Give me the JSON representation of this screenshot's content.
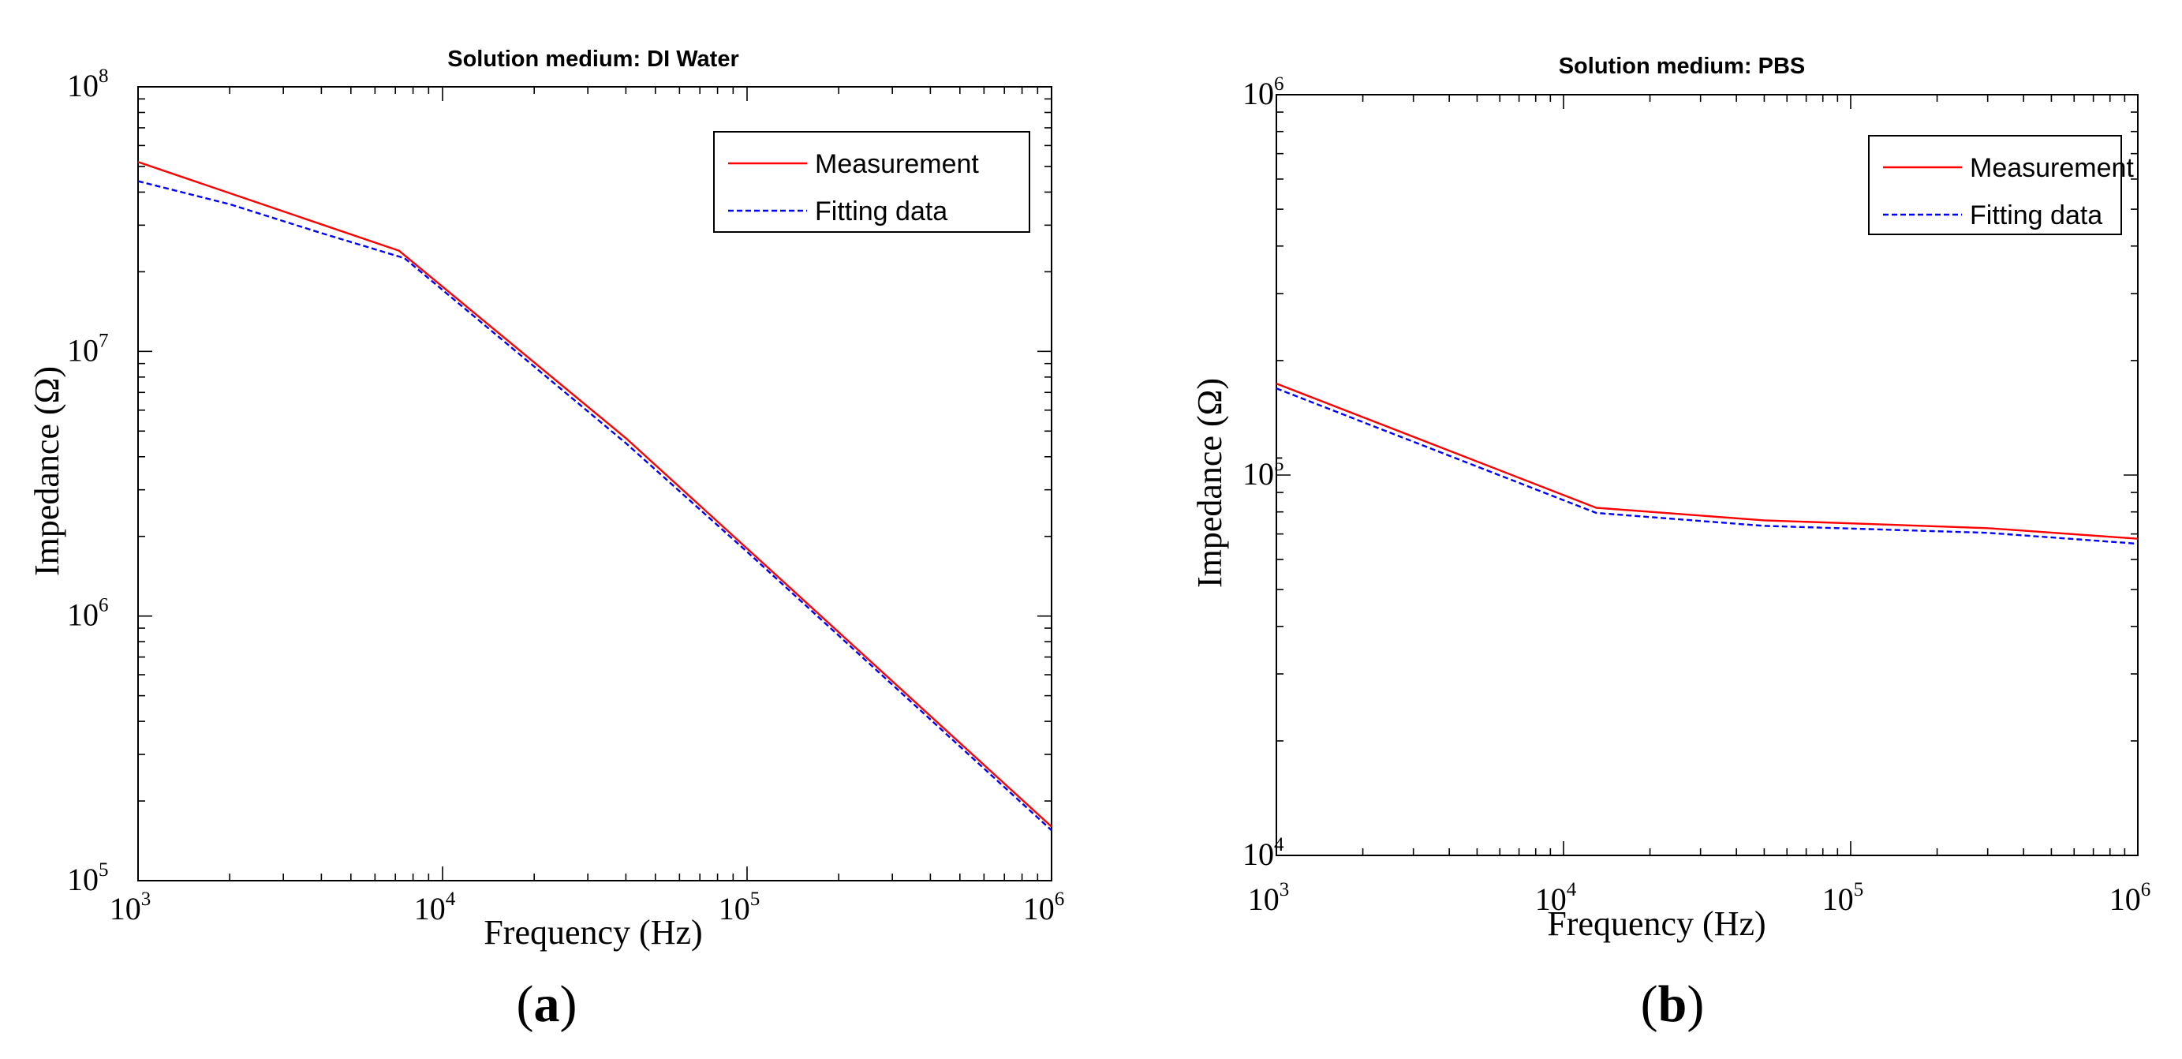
{
  "figure": {
    "panels": [
      {
        "caption_open": "(",
        "caption_letter": "a",
        "caption_close": ")"
      },
      {
        "caption_open": "(",
        "caption_letter": "b",
        "caption_close": ")"
      }
    ]
  },
  "chart_data": [
    {
      "type": "line",
      "title": "Solution medium: DI Water",
      "xlabel": "Frequency (Hz)",
      "ylabel": "Impedance (Ω)",
      "xscale": "log",
      "yscale": "log",
      "xlim": [
        1000,
        1000000
      ],
      "ylim": [
        100000,
        100000000
      ],
      "x_ticks": [
        {
          "value": 1000,
          "base": "10",
          "exp": "3"
        },
        {
          "value": 10000,
          "base": "10",
          "exp": "4"
        },
        {
          "value": 100000,
          "base": "10",
          "exp": "5"
        },
        {
          "value": 1000000,
          "base": "10",
          "exp": "6"
        }
      ],
      "y_ticks": [
        {
          "value": 100000,
          "base": "10",
          "exp": "5"
        },
        {
          "value": 1000000,
          "base": "10",
          "exp": "6"
        },
        {
          "value": 10000000,
          "base": "10",
          "exp": "7"
        },
        {
          "value": 100000000,
          "base": "10",
          "exp": "8"
        }
      ],
      "legend_position": "top-right",
      "series": [
        {
          "name": "Measurement",
          "color": "#ff0000",
          "style": "solid",
          "x": [
            1000,
            7200,
            40000,
            100000,
            1000000
          ],
          "y": [
            52000000,
            24000000,
            4700000,
            1800000,
            160000
          ]
        },
        {
          "name": "Fitting data",
          "color": "#0000ff",
          "style": "dashed",
          "x": [
            1000,
            2000,
            4000,
            7500,
            40000,
            100000,
            1000000
          ],
          "y": [
            44000000,
            36000000,
            28000000,
            22500000,
            4500000,
            1750000,
            155000
          ]
        }
      ]
    },
    {
      "type": "line",
      "title": "Solution medium: PBS",
      "xlabel": "Frequency (Hz)",
      "ylabel": "Impedance (Ω)",
      "xscale": "log",
      "yscale": "log",
      "xlim": [
        1000,
        1000000
      ],
      "ylim": [
        10000,
        1000000
      ],
      "x_ticks": [
        {
          "value": 1000,
          "base": "10",
          "exp": "3"
        },
        {
          "value": 10000,
          "base": "10",
          "exp": "4"
        },
        {
          "value": 100000,
          "base": "10",
          "exp": "5"
        },
        {
          "value": 1000000,
          "base": "10",
          "exp": "6"
        }
      ],
      "y_ticks": [
        {
          "value": 10000,
          "base": "10",
          "exp": "4"
        },
        {
          "value": 100000,
          "base": "10",
          "exp": "5"
        },
        {
          "value": 1000000,
          "base": "10",
          "exp": "6"
        }
      ],
      "legend_position": "top-right",
      "series": [
        {
          "name": "Measurement",
          "color": "#ff0000",
          "style": "solid",
          "x": [
            1000,
            13000,
            50000,
            300000,
            1000000
          ],
          "y": [
            174000,
            82000,
            76000,
            72500,
            68000
          ]
        },
        {
          "name": "Fitting data",
          "color": "#0000ff",
          "style": "dashed",
          "x": [
            1000,
            13000,
            50000,
            300000,
            1000000
          ],
          "y": [
            169000,
            79500,
            73500,
            70500,
            66000
          ]
        }
      ]
    }
  ]
}
